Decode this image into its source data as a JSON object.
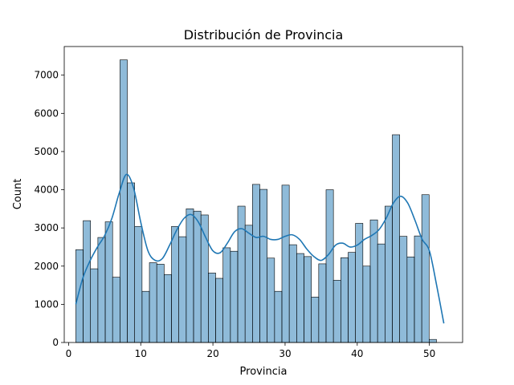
{
  "chart_data": {
    "type": "bar",
    "subtype": "histogram-with-kde",
    "title": "Distribución de Provincia",
    "xlabel": "Provincia",
    "ylabel": "Count",
    "xlim": [
      -0.6,
      54.6
    ],
    "ylim": [
      0,
      7750
    ],
    "x_ticks": [
      0,
      10,
      20,
      30,
      40,
      50
    ],
    "y_ticks": [
      0,
      1000,
      2000,
      3000,
      4000,
      5000,
      6000,
      7000
    ],
    "grid": false,
    "bar_color": "#1f77b4",
    "bar_fill_opacity": 0.5,
    "line_color": "#1f77b4",
    "bin_start": 1,
    "bin_width": 1.02,
    "values": [
      2430,
      3190,
      1930,
      2750,
      3160,
      1710,
      7400,
      4180,
      3040,
      1340,
      2090,
      2050,
      1780,
      3040,
      2770,
      3500,
      3440,
      3340,
      1820,
      1680,
      2480,
      2390,
      3570,
      3070,
      4140,
      4010,
      2210,
      1340,
      4120,
      2560,
      2330,
      2250,
      1190,
      2060,
      4000,
      1630,
      2220,
      2360,
      3120,
      2000,
      3210,
      2580,
      3570,
      5440,
      2780,
      2240,
      2790,
      3870,
      80
    ],
    "kde": {
      "x": [
        1,
        2,
        3,
        4,
        5,
        6,
        7,
        8,
        9,
        10,
        11,
        12,
        13,
        14,
        15,
        16,
        17,
        18,
        19,
        20,
        21,
        22,
        23,
        24,
        25,
        26,
        27,
        28,
        29,
        30,
        31,
        32,
        33,
        34,
        35,
        36,
        37,
        38,
        39,
        40,
        41,
        42,
        43,
        44,
        45,
        46,
        47,
        48,
        49,
        50,
        51,
        52
      ],
      "y": [
        1000,
        1700,
        2150,
        2500,
        2800,
        3250,
        3900,
        4400,
        4050,
        3150,
        2400,
        2150,
        2200,
        2550,
        2950,
        3250,
        3350,
        3150,
        2750,
        2400,
        2350,
        2600,
        2900,
        2980,
        2860,
        2750,
        2780,
        2700,
        2700,
        2780,
        2820,
        2700,
        2450,
        2250,
        2150,
        2300,
        2550,
        2600,
        2500,
        2550,
        2700,
        2800,
        2950,
        3250,
        3650,
        3830,
        3650,
        3200,
        2700,
        2400,
        1500,
        500
      ]
    }
  }
}
